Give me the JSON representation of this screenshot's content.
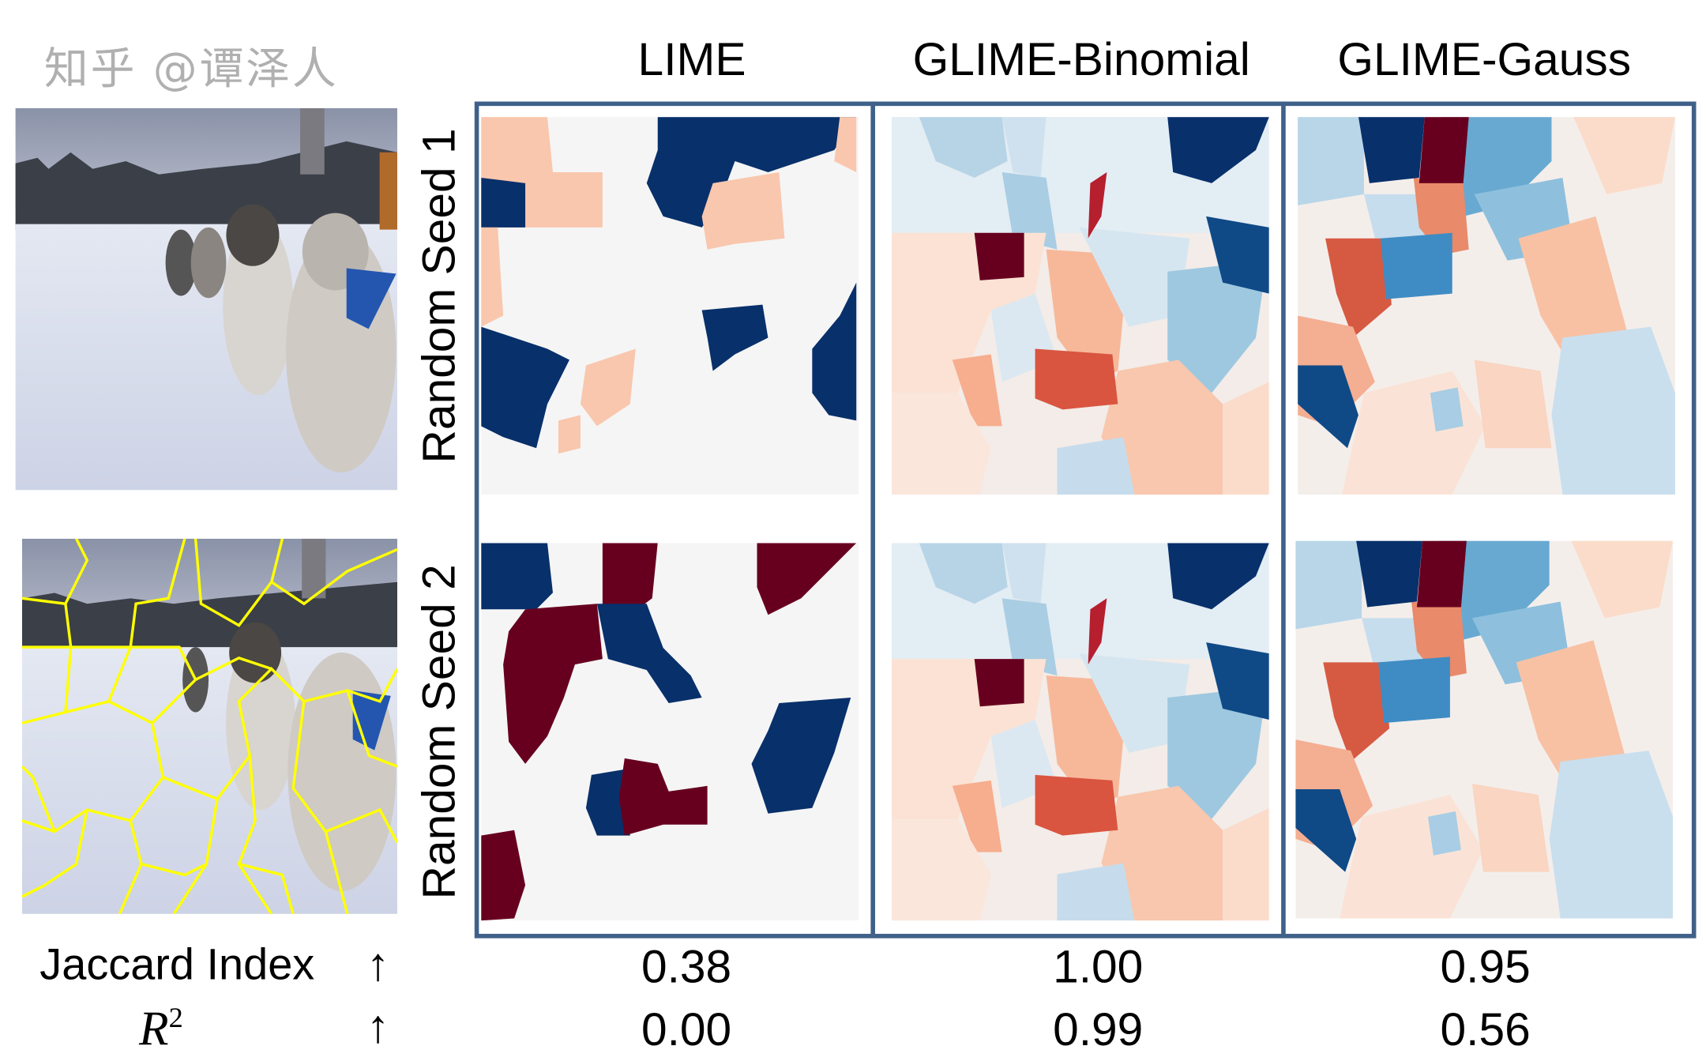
{
  "columns": [
    {
      "label": "LIME"
    },
    {
      "label": "GLIME-Binomial"
    },
    {
      "label": "GLIME-Gauss"
    }
  ],
  "rows": [
    {
      "label": "Random Seed 1"
    },
    {
      "label": "Random Seed 2"
    }
  ],
  "metrics": [
    {
      "label": "Jaccard Index",
      "arrow": "↑",
      "values": [
        "0.38",
        "1.00",
        "0.95"
      ]
    },
    {
      "label": "R",
      "superscript": "2",
      "arrow": "↑",
      "values": [
        "0.00",
        "0.99",
        "0.56"
      ]
    }
  ],
  "colors": {
    "frame": "#3f6189",
    "strong_negative": "#08306b",
    "strong_positive": "#67001f",
    "neutral": "#f5f5f5",
    "superpixel_boundary": "#ffff00"
  },
  "watermark": "知乎 @谭泽人"
}
